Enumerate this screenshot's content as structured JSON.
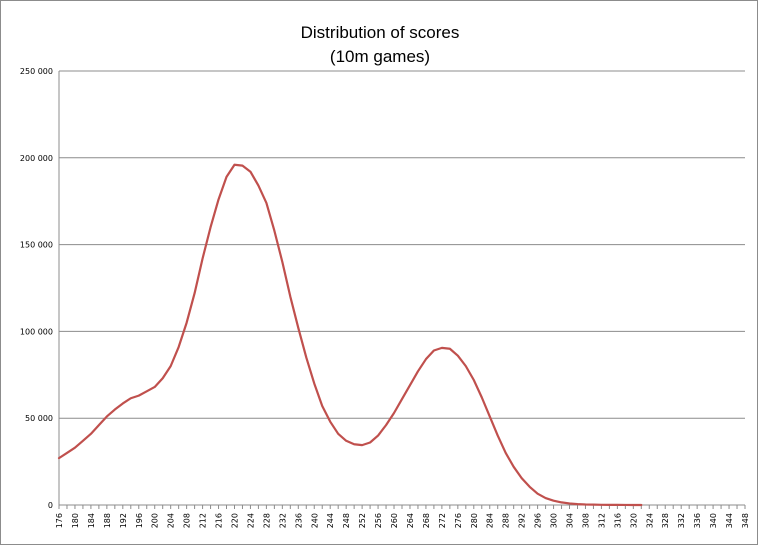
{
  "chart_data": {
    "type": "line",
    "title": "Distribution of scores",
    "subtitle": "(10m games)",
    "xlabel": "",
    "ylabel": "",
    "xlim": [
      176,
      348
    ],
    "ylim": [
      0,
      250000
    ],
    "grid": "horizontal",
    "legend": "none",
    "y_ticks": [
      {
        "value": 0,
        "label": "0"
      },
      {
        "value": 50000,
        "label": "50 000"
      },
      {
        "value": 100000,
        "label": "100 000"
      },
      {
        "value": 150000,
        "label": "150 000"
      },
      {
        "value": 200000,
        "label": "200 000"
      },
      {
        "value": 250000,
        "label": "250 000"
      }
    ],
    "x_ticks": [
      "176",
      "180",
      "184",
      "188",
      "192",
      "196",
      "200",
      "204",
      "208",
      "212",
      "216",
      "220",
      "224",
      "228",
      "232",
      "236",
      "240",
      "244",
      "248",
      "252",
      "256",
      "260",
      "264",
      "268",
      "272",
      "276",
      "280",
      "284",
      "288",
      "292",
      "296",
      "300",
      "304",
      "308",
      "312",
      "316",
      "320",
      "324",
      "328",
      "332",
      "336",
      "340",
      "344",
      "348"
    ],
    "series": [
      {
        "color": "#c0504d",
        "points": [
          [
            176,
            27000
          ],
          [
            178,
            30000
          ],
          [
            180,
            33000
          ],
          [
            182,
            37000
          ],
          [
            184,
            41000
          ],
          [
            186,
            46000
          ],
          [
            188,
            51000
          ],
          [
            190,
            55000
          ],
          [
            192,
            58500
          ],
          [
            194,
            61500
          ],
          [
            196,
            63000
          ],
          [
            198,
            65500
          ],
          [
            200,
            68000
          ],
          [
            202,
            73000
          ],
          [
            204,
            80000
          ],
          [
            206,
            91000
          ],
          [
            208,
            105000
          ],
          [
            210,
            122000
          ],
          [
            212,
            142000
          ],
          [
            214,
            160000
          ],
          [
            216,
            176000
          ],
          [
            218,
            189000
          ],
          [
            220,
            196000
          ],
          [
            222,
            195500
          ],
          [
            224,
            192000
          ],
          [
            226,
            184000
          ],
          [
            228,
            174000
          ],
          [
            230,
            158000
          ],
          [
            232,
            140000
          ],
          [
            234,
            120000
          ],
          [
            236,
            102000
          ],
          [
            238,
            85000
          ],
          [
            240,
            70000
          ],
          [
            242,
            57000
          ],
          [
            244,
            48000
          ],
          [
            246,
            41000
          ],
          [
            248,
            37000
          ],
          [
            250,
            35000
          ],
          [
            252,
            34500
          ],
          [
            254,
            36000
          ],
          [
            256,
            40000
          ],
          [
            258,
            46000
          ],
          [
            260,
            53000
          ],
          [
            262,
            61000
          ],
          [
            264,
            69000
          ],
          [
            266,
            77000
          ],
          [
            268,
            84000
          ],
          [
            270,
            89000
          ],
          [
            272,
            90500
          ],
          [
            274,
            90000
          ],
          [
            276,
            86000
          ],
          [
            278,
            80000
          ],
          [
            280,
            72000
          ],
          [
            282,
            62000
          ],
          [
            284,
            51000
          ],
          [
            286,
            40000
          ],
          [
            288,
            30000
          ],
          [
            290,
            22000
          ],
          [
            292,
            15500
          ],
          [
            294,
            10500
          ],
          [
            296,
            6500
          ],
          [
            298,
            4000
          ],
          [
            300,
            2500
          ],
          [
            302,
            1500
          ],
          [
            304,
            900
          ],
          [
            306,
            500
          ],
          [
            308,
            300
          ],
          [
            310,
            200
          ],
          [
            312,
            100
          ],
          [
            314,
            80
          ],
          [
            316,
            50
          ],
          [
            318,
            30
          ],
          [
            320,
            20
          ],
          [
            322,
            10
          ]
        ]
      }
    ]
  }
}
